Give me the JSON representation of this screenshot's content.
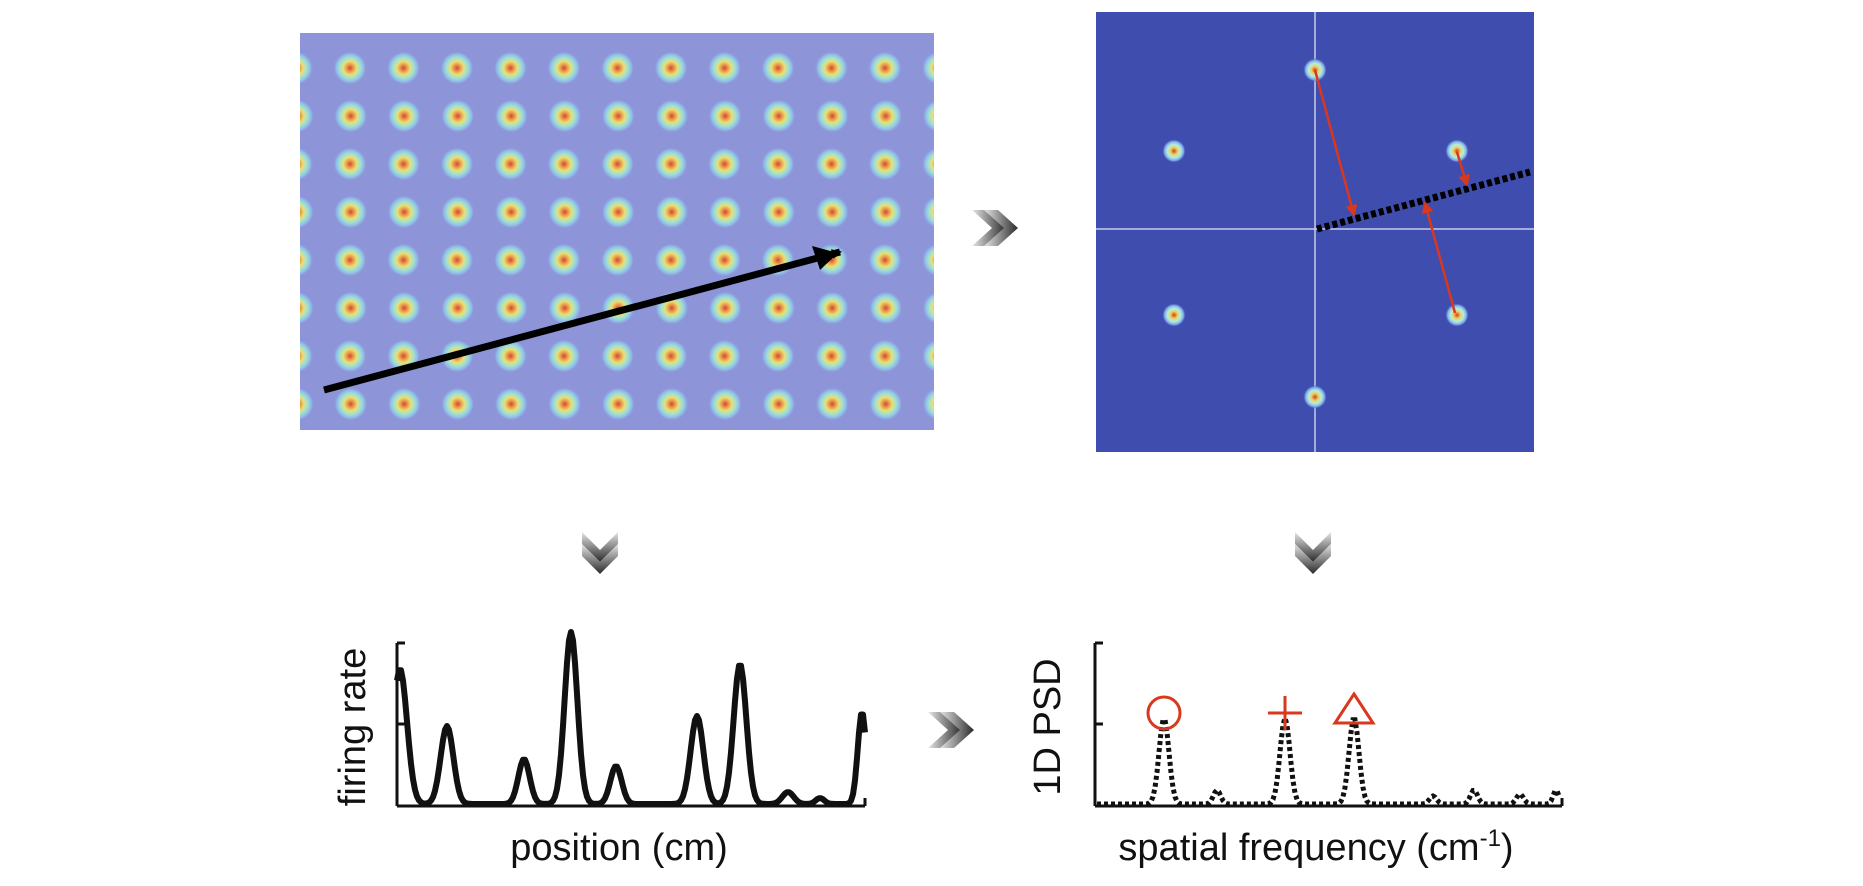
{
  "colors": {
    "grid_bg": "#8e94d8",
    "fft_bg": "#3f4dae",
    "arrow": "#000000",
    "accent_red": "#d9381e",
    "trace": "#111111",
    "chevron_dark": "#2a2a2a",
    "chevron_light": "#cfcfcf"
  },
  "icons": {
    "step_arrows": "chevron-right-icon",
    "down_arrows": "chevron-down-icon",
    "markers": [
      "circle-marker-icon",
      "plus-marker-icon",
      "triangle-marker-icon"
    ]
  },
  "bottom_left_plot": {
    "ylabel": "firing rate",
    "xlabel": "position (cm)"
  },
  "bottom_right_plot": {
    "ylabel": "1D PSD",
    "xlabel_main": "spatial frequency (cm",
    "xlabel_sup": "-1",
    "xlabel_end": ")"
  }
}
